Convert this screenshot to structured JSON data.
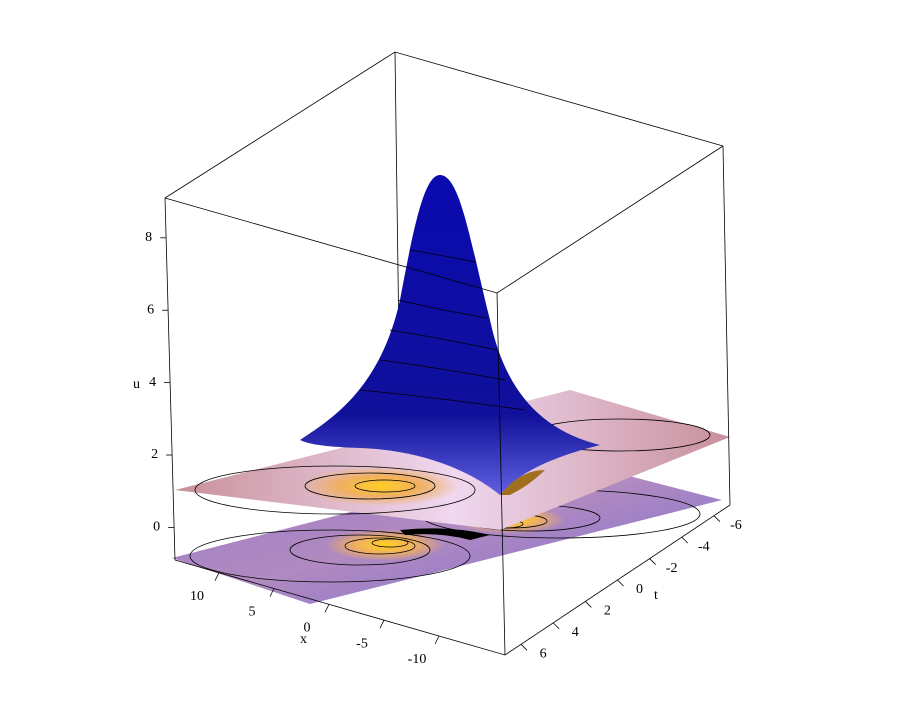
{
  "chart_data": {
    "type": "surface3d",
    "xlabel": "x",
    "ylabel": "t",
    "zlabel": "u",
    "xlim": [
      14,
      -16
    ],
    "xticks": [
      10,
      5,
      0,
      -5,
      -10
    ],
    "ylim": [
      7,
      -7
    ],
    "yticks": [
      6,
      4,
      2,
      0,
      -2,
      -4,
      -6
    ],
    "zlim": [
      -0.9,
      9.1
    ],
    "zticks": [
      0,
      2,
      4,
      6,
      8
    ]
  }
}
